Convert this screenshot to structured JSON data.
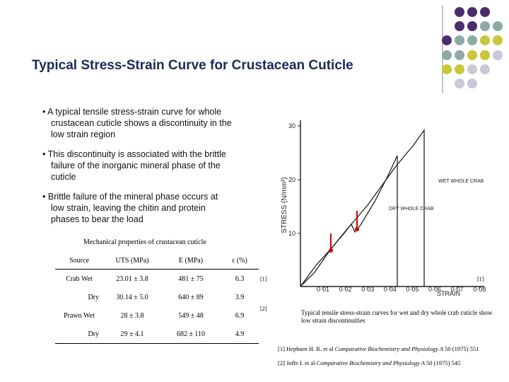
{
  "title": "Typical Stress-Strain Curve for Crustacean Cuticle",
  "bullets": [
    "A typical tensile stress-strain curve for whole crustacean cuticle shows a discontinuity in the low strain region",
    "This discontinuity is associated with the brittle failure of the inorganic mineral phase of the cuticle",
    "Brittle failure of the mineral phase occurs at low strain, leaving the chitin and protein phases to bear the load"
  ],
  "table": {
    "caption": "Mechanical properties of crustacean cuticle",
    "header": [
      "Source",
      "UTS (MPa)",
      "E (MPa)",
      "ε (%)"
    ],
    "rows": [
      [
        "Crab Wet",
        "23.01 ± 3.8",
        "481 ± 75",
        "6.3"
      ],
      [
        "Dry",
        "30.14 ± 5.0",
        "640 ± 89",
        "3.9"
      ],
      [
        "Prawn Wet",
        "28 ± 3.8",
        "549 ± 48",
        "6.9"
      ],
      [
        "Dry",
        "29 ± 4.1",
        "682 ± 110",
        "4.9"
      ]
    ],
    "refs": [
      "[1]",
      "[2]"
    ]
  },
  "figure": {
    "y_label": "STRESS (N/mm²)",
    "x_label": "STRAIN",
    "yticks": [
      "30",
      "20",
      "10"
    ],
    "xticks": [
      "0·01",
      "0·02",
      "0·03",
      "0·04",
      "0·05",
      "0·06",
      "0·07",
      "0·08"
    ],
    "curve_labels": [
      "WET WHOLE CRAB",
      "DRY WHOLE CRAB"
    ],
    "ref": "[1]",
    "caption": "Typical tensile stress-strain curves for wet and dry whole crab cuticle show low strain discontinuities"
  },
  "references": [
    {
      "authors": "[1] Hepburn H. R. et al",
      "journal": "Comparative Biochemistry and Physiology A",
      "volume": "50 (1975) 551"
    },
    {
      "authors": "[2] Joffe I. et al",
      "journal": "Comparative Biochemistry and Physiology A",
      "volume": "50 (1975) 545"
    }
  ]
}
